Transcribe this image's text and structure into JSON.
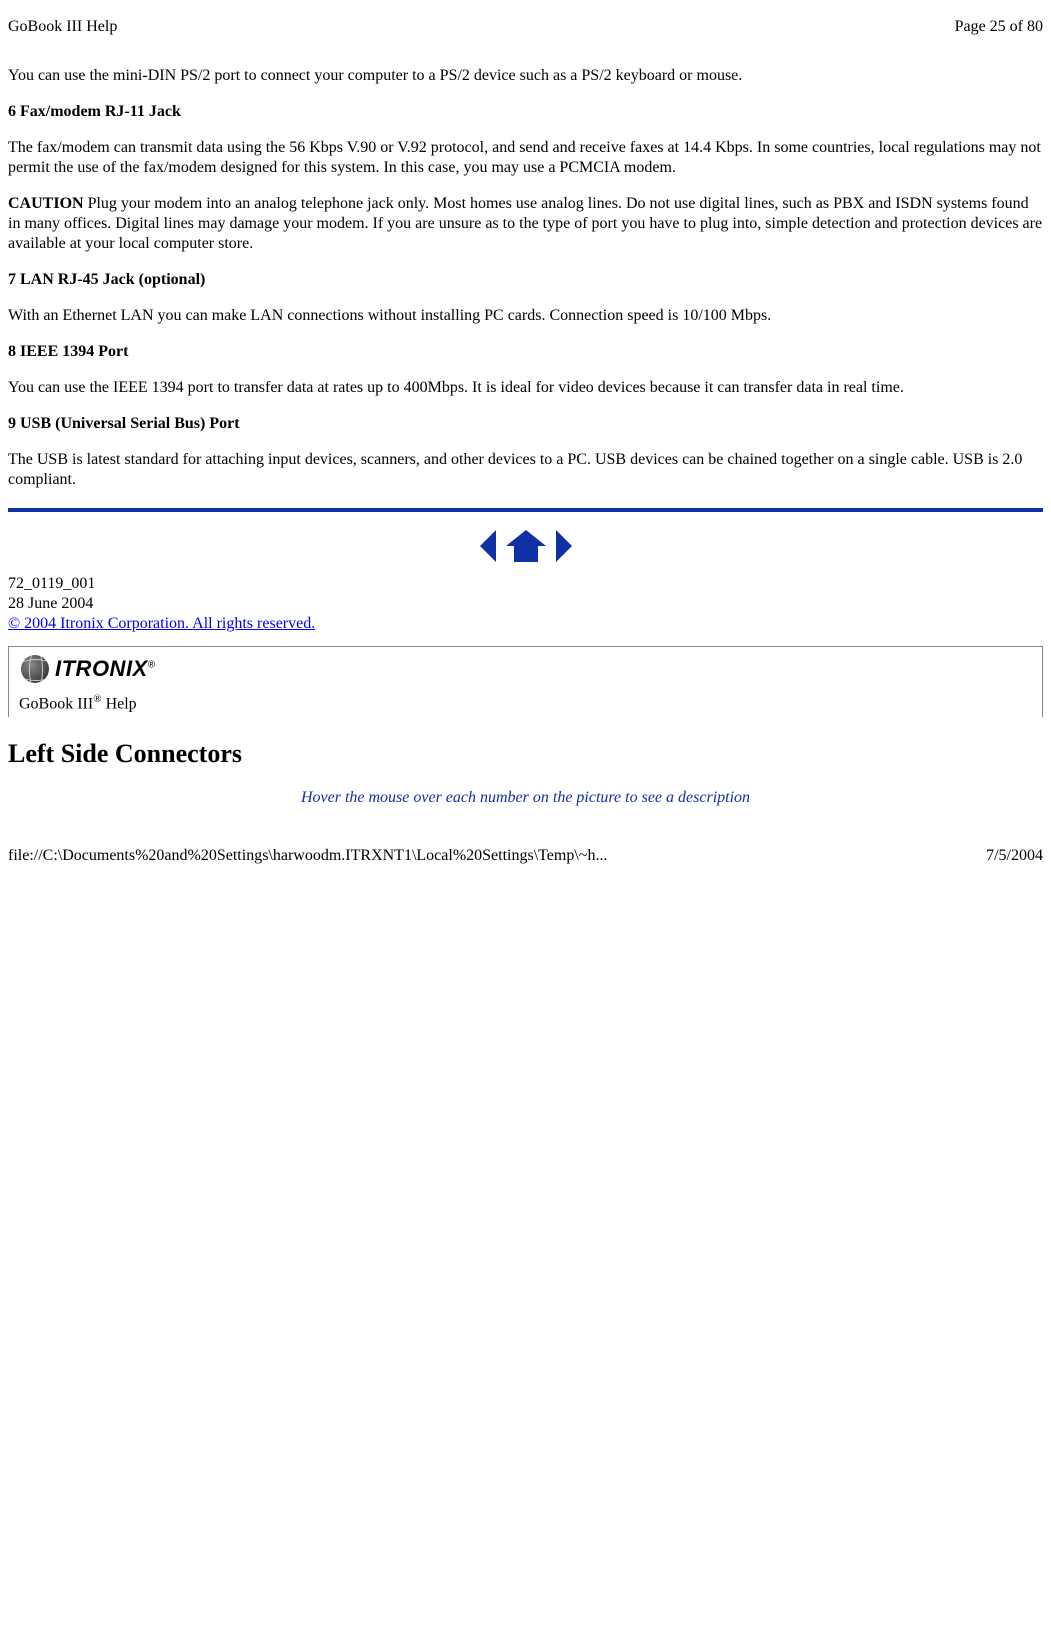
{
  "header": {
    "left": "GoBook III Help",
    "right": "Page 25 of 80"
  },
  "body": {
    "p1": "You can use the mini-DIN PS/2 port to connect your computer to a PS/2 device such as a PS/2 keyboard or mouse.",
    "h6": "6  Fax/modem RJ-11 Jack",
    "p6": "The fax/modem can transmit data using the 56 Kbps V.90 or V.92 protocol, and send and receive faxes at 14.4 Kbps.  In some countries, local regulations may not permit the use of the fax/modem designed for this system.  In this case, you may use a PCMCIA modem.",
    "cautionLabel": "CAUTION",
    "cautionText": " Plug your modem into an analog telephone jack only.  Most homes use analog lines.  Do not use digital lines, such as PBX and ISDN systems found in many offices.  Digital lines may damage your modem.  If you are unsure as to the type of port you have to plug into, simple detection and protection devices are available at your local computer store.",
    "h7": "7 LAN RJ-45 Jack (optional)",
    "p7": "With an Ethernet LAN you can make LAN connections without installing PC cards. Connection speed is 10/100 Mbps.",
    "h8": "8 IEEE 1394 Port",
    "p8": "You can use the IEEE 1394 port to transfer data at rates up to 400Mbps. It is ideal for video devices because it can transfer data in real time.",
    "h9": "9 USB (Universal Serial Bus) Port",
    "p9": "The USB is latest standard for attaching input devices, scanners, and other devices to a PC.  USB devices can be chained together on a single cable. USB is 2.0 compliant."
  },
  "docmeta": {
    "id": "72_0119_001",
    "date": "28 June 2004",
    "copyright": "© 2004 Itronix Corporation.  All rights reserved."
  },
  "logo": {
    "brand": "ITRONIX",
    "reg": "®"
  },
  "helpLine": {
    "prefix": "GoBook III",
    "sup": "®",
    "suffix": " Help"
  },
  "section": {
    "title": "Left Side Connectors",
    "note": "Hover the mouse over each number on the picture to see a description"
  },
  "footer": {
    "left": "file://C:\\Documents%20and%20Settings\\harwoodm.ITRXNT1\\Local%20Settings\\Temp\\~h...",
    "right": "7/5/2004"
  },
  "colors": {
    "accent": "#1030a6",
    "link": "#0000ee"
  }
}
